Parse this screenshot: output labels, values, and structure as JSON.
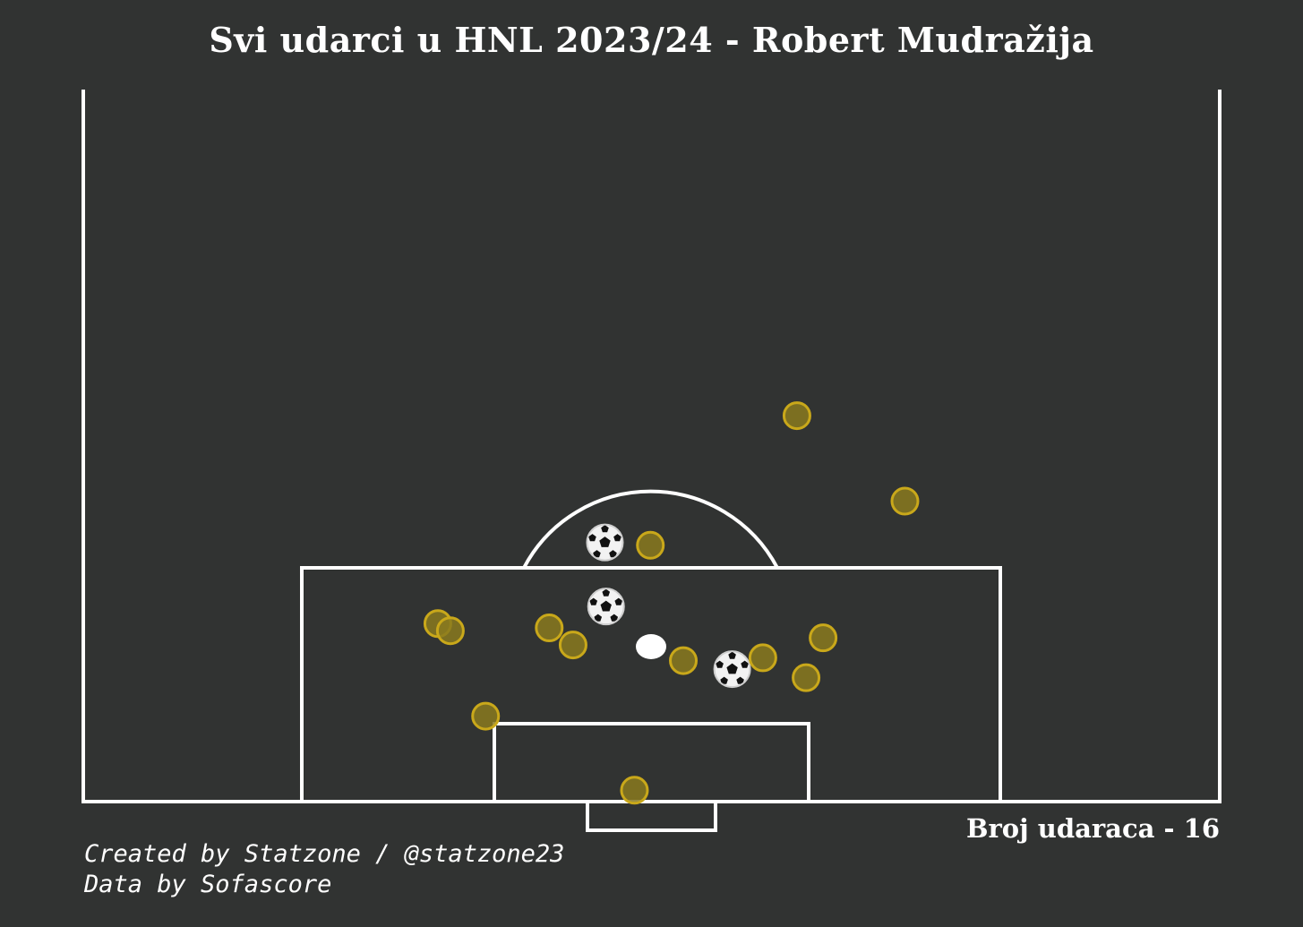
{
  "title": "Svi udarci u HNL 2023/24 - Robert Mudražija",
  "shot_count_label": "Broj udaraca - 16",
  "credits": {
    "line1": "Created by Statzone / @statzone23",
    "line2": "Data by Sofascore"
  },
  "colors": {
    "background": "#313332",
    "lines": "#ffffff",
    "miss_fill": "#8a7a1f",
    "miss_stroke": "#c9a81a",
    "goal_icon": "soccer-ball"
  },
  "chart_data": {
    "type": "scatter",
    "title": "Svi udarci u HNL 2023/24 - Robert Mudražija",
    "pitch": "half-pitch, vertical, goal at bottom",
    "x_range": [
      0,
      100
    ],
    "y_range": [
      50,
      100
    ],
    "series": [
      {
        "name": "Goal",
        "marker": "soccer-ball",
        "points": [
          {
            "x": 45.9,
            "y": 81.8
          },
          {
            "x": 46.0,
            "y": 86.3
          },
          {
            "x": 57.1,
            "y": 90.7
          }
        ]
      },
      {
        "name": "Shot",
        "marker": "circle",
        "points": [
          {
            "x": 62.8,
            "y": 72.9
          },
          {
            "x": 72.3,
            "y": 78.9
          },
          {
            "x": 49.9,
            "y": 82.0
          },
          {
            "x": 31.2,
            "y": 87.5
          },
          {
            "x": 32.3,
            "y": 88.0
          },
          {
            "x": 41.0,
            "y": 87.8
          },
          {
            "x": 43.1,
            "y": 89.0
          },
          {
            "x": 52.8,
            "y": 90.1
          },
          {
            "x": 59.8,
            "y": 89.9
          },
          {
            "x": 65.1,
            "y": 88.5
          },
          {
            "x": 63.6,
            "y": 91.3
          },
          {
            "x": 35.4,
            "y": 94.0
          },
          {
            "x": 48.5,
            "y": 99.2
          }
        ]
      }
    ]
  }
}
